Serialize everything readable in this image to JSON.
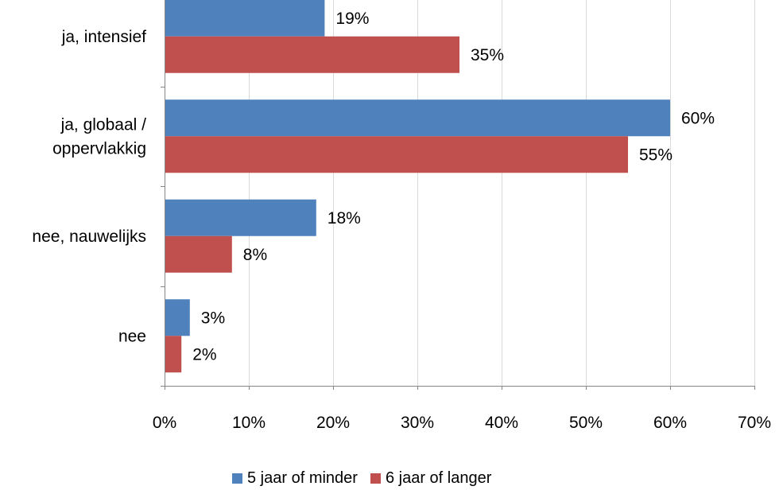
{
  "chart_data": {
    "type": "bar",
    "orientation": "horizontal",
    "categories": [
      "ja, intensief",
      "ja, globaal / oppervlakkig",
      "nee, nauwelijks",
      "nee"
    ],
    "category_lines": [
      [
        "ja, intensief"
      ],
      [
        "ja, globaal /",
        "oppervlakkig"
      ],
      [
        "nee, nauwelijks"
      ],
      [
        "nee"
      ]
    ],
    "series": [
      {
        "name": "5 jaar of minder",
        "values": [
          19,
          60,
          18,
          3
        ],
        "labels": [
          "19%",
          "60%",
          "18%",
          "3%"
        ],
        "color": "#4F81BD"
      },
      {
        "name": "6 jaar of langer",
        "values": [
          35,
          55,
          8,
          2
        ],
        "labels": [
          "35%",
          "55%",
          "8%",
          "2%"
        ],
        "color": "#C0504D"
      }
    ],
    "xlim": [
      0,
      70
    ],
    "xticks": [
      0,
      10,
      20,
      30,
      40,
      50,
      60,
      70
    ],
    "xtick_labels": [
      "0%",
      "10%",
      "20%",
      "30%",
      "40%",
      "50%",
      "60%",
      "70%"
    ],
    "grid": true,
    "legend_position": "bottom",
    "gridline_color": "#D9D9D9",
    "axis_color": "#868686"
  }
}
